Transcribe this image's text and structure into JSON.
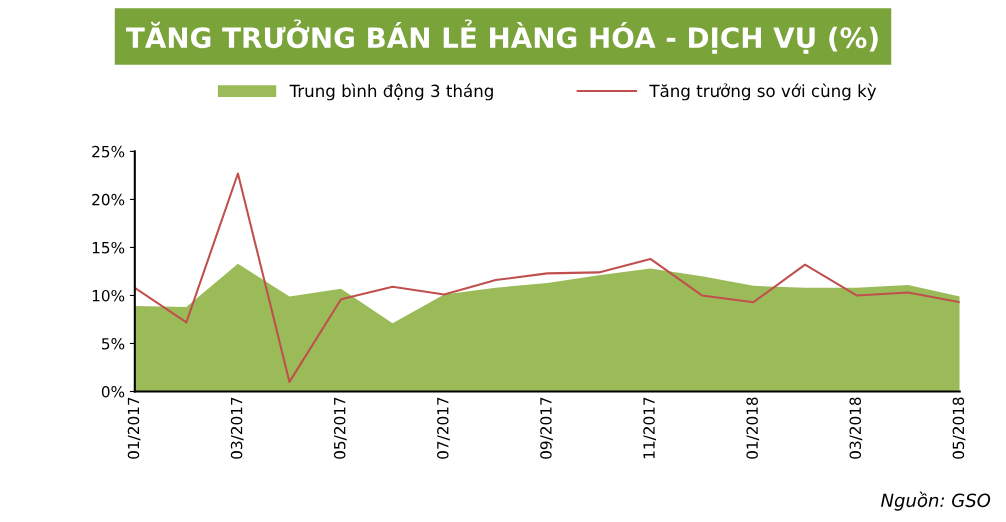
{
  "chart_data": {
    "type": "area",
    "title": "TĂNG TRƯỞNG BÁN LẺ HÀNG HÓA - DỊCH VỤ (%)",
    "categories": [
      "01/2017",
      null,
      "03/2017",
      null,
      "05/2017",
      null,
      "07/2017",
      null,
      "09/2017",
      null,
      "11/2017",
      null,
      "01/2018",
      null,
      "03/2018",
      null,
      "05/2018"
    ],
    "series": [
      {
        "name": "Trung bình động 3 tháng",
        "color": "#9bbb59",
        "values": [
          8.9,
          8.8,
          13.3,
          9.9,
          10.7,
          7.1,
          10.1,
          10.8,
          11.3,
          12.1,
          12.8,
          12.0,
          11.0,
          10.8,
          10.8,
          11.1,
          9.9
        ]
      },
      {
        "name": "Tăng trưởng so với cùng kỳ",
        "type": "line",
        "color": "#c0504d",
        "values": [
          10.8,
          7.2,
          22.7,
          1.0,
          9.6,
          10.9,
          10.1,
          11.6,
          12.3,
          12.4,
          13.8,
          10.0,
          9.3,
          13.2,
          10.0,
          10.3,
          9.3
        ]
      }
    ],
    "ylim": [
      0,
      25
    ],
    "yticks": [
      {
        "value": 0,
        "label": "0%"
      },
      {
        "value": 5,
        "label": "5%"
      },
      {
        "value": 10,
        "label": "10%"
      },
      {
        "value": 15,
        "label": "15%"
      },
      {
        "value": 20,
        "label": "20%"
      },
      {
        "value": 25,
        "label": "25%"
      }
    ],
    "legend": "top",
    "grid": false,
    "annotations": [
      "Nguồn: GSO"
    ]
  }
}
